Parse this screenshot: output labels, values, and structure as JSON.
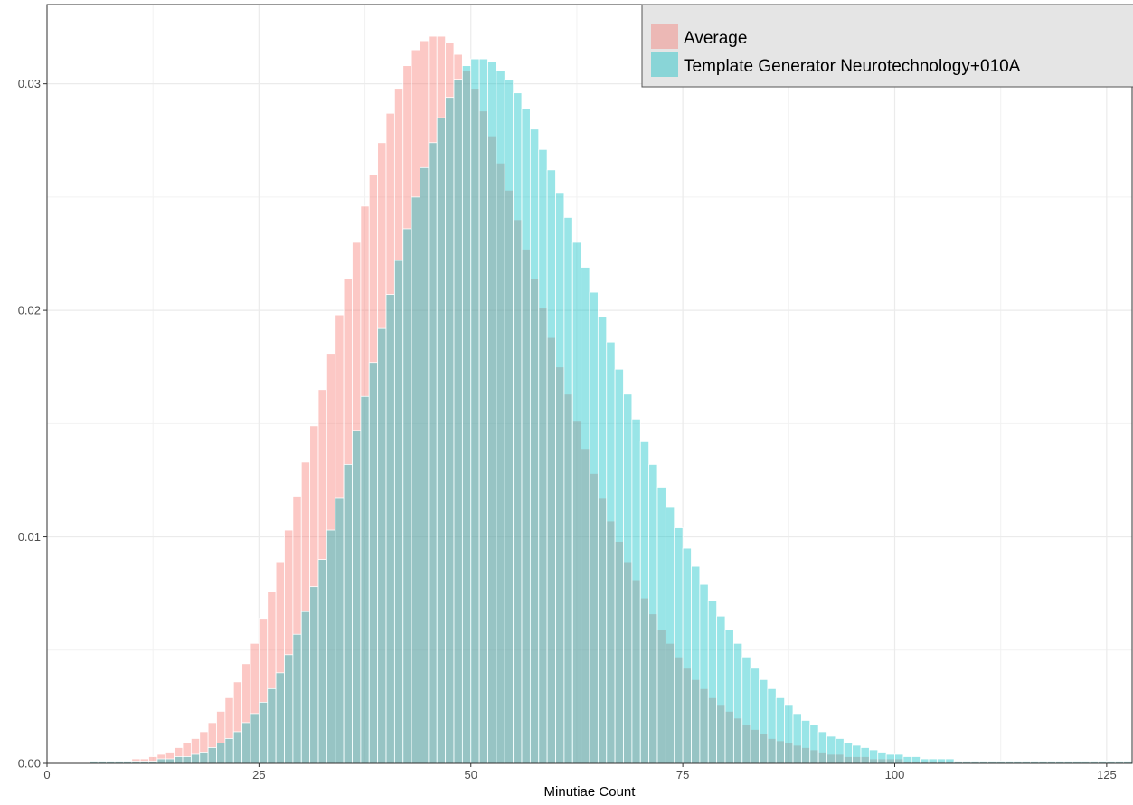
{
  "chart_data": {
    "type": "histogram",
    "title": "",
    "xlabel": "Minutiae Count",
    "ylabel": "",
    "xlim": [
      0,
      128
    ],
    "ylim": [
      0,
      0.0335
    ],
    "x_ticks": [
      0,
      25,
      50,
      75,
      100,
      125
    ],
    "x_tick_labels": [
      "0",
      "25",
      "50",
      "75",
      "100",
      "125"
    ],
    "y_ticks": [
      0,
      0.01,
      0.02,
      0.03
    ],
    "y_tick_labels": [
      "0.00",
      "0.01",
      "0.02",
      "0.03"
    ],
    "grid": true,
    "legend_position": "top-right",
    "bin_start": 5,
    "bin_width": 1,
    "series": [
      {
        "name": "Average",
        "color": "#f8766d",
        "values": [
          0.0001,
          0.0001,
          0.0001,
          0.0001,
          0.0001,
          0.0002,
          0.0002,
          0.0003,
          0.0004,
          0.0005,
          0.0007,
          0.0009,
          0.0011,
          0.0014,
          0.0018,
          0.0023,
          0.0029,
          0.0036,
          0.0044,
          0.0053,
          0.0064,
          0.0076,
          0.0089,
          0.0103,
          0.0118,
          0.0133,
          0.0149,
          0.0165,
          0.0181,
          0.0198,
          0.0214,
          0.023,
          0.0246,
          0.026,
          0.0274,
          0.0287,
          0.0298,
          0.0308,
          0.0315,
          0.0319,
          0.0321,
          0.0321,
          0.0318,
          0.0313,
          0.0306,
          0.0298,
          0.0288,
          0.0277,
          0.0265,
          0.0253,
          0.024,
          0.0227,
          0.0214,
          0.0201,
          0.0188,
          0.0175,
          0.0163,
          0.0151,
          0.0139,
          0.0128,
          0.0117,
          0.0107,
          0.0098,
          0.0089,
          0.0081,
          0.0073,
          0.0066,
          0.0059,
          0.0053,
          0.0047,
          0.0042,
          0.0037,
          0.0033,
          0.0029,
          0.0026,
          0.0023,
          0.002,
          0.0017,
          0.0015,
          0.0013,
          0.0011,
          0.001,
          0.0009,
          0.0008,
          0.0007,
          0.0006,
          0.0005,
          0.0004,
          0.0004,
          0.0003,
          0.0003,
          0.0003,
          0.0002,
          0.0002,
          0.0002,
          0.0002,
          0.0001,
          0.0001,
          0.0001,
          0.0001,
          0.0001,
          0.0001,
          0.0001,
          0.0001,
          0.0001,
          0.0001,
          0.0001,
          0.0001,
          0.0001,
          0.0001,
          0.0001,
          0.0001,
          0.0001,
          0.0001,
          0.0001,
          0.0001,
          0.0001,
          0.0001,
          0.0001,
          0.0001,
          0.0001,
          0.0001,
          0.0001
        ]
      },
      {
        "name": "Template Generator Neurotechnology+010A",
        "color": "#00bfc4",
        "values": [
          0.0001,
          0.0001,
          0.0001,
          0.0001,
          0.0001,
          0.0001,
          0.0001,
          0.0001,
          0.0002,
          0.0002,
          0.0003,
          0.0003,
          0.0004,
          0.0005,
          0.0007,
          0.0009,
          0.0011,
          0.0014,
          0.0018,
          0.0022,
          0.0027,
          0.0033,
          0.004,
          0.0048,
          0.0057,
          0.0067,
          0.0078,
          0.009,
          0.0103,
          0.0117,
          0.0132,
          0.0147,
          0.0162,
          0.0177,
          0.0192,
          0.0207,
          0.0222,
          0.0236,
          0.025,
          0.0263,
          0.0274,
          0.0285,
          0.0294,
          0.0302,
          0.0308,
          0.0311,
          0.0311,
          0.031,
          0.0306,
          0.0302,
          0.0296,
          0.0289,
          0.028,
          0.0271,
          0.0262,
          0.0252,
          0.0241,
          0.023,
          0.0219,
          0.0208,
          0.0197,
          0.0186,
          0.0174,
          0.0163,
          0.0152,
          0.0142,
          0.0132,
          0.0122,
          0.0113,
          0.0104,
          0.0095,
          0.0087,
          0.0079,
          0.0072,
          0.0065,
          0.0059,
          0.0053,
          0.0047,
          0.0042,
          0.0037,
          0.0033,
          0.0029,
          0.0026,
          0.0022,
          0.0019,
          0.0017,
          0.0014,
          0.0012,
          0.0011,
          0.0009,
          0.0008,
          0.0007,
          0.0006,
          0.0005,
          0.0004,
          0.0004,
          0.0003,
          0.0003,
          0.0002,
          0.0002,
          0.0002,
          0.0002,
          0.0001,
          0.0001,
          0.0001,
          0.0001,
          0.0001,
          0.0001,
          0.0001,
          0.0001,
          0.0001,
          0.0001,
          0.0001,
          0.0001,
          0.0001,
          0.0001,
          0.0001,
          0.0001,
          0.0001,
          0.0001,
          0.0001,
          0.0001,
          0.0001
        ]
      }
    ]
  }
}
